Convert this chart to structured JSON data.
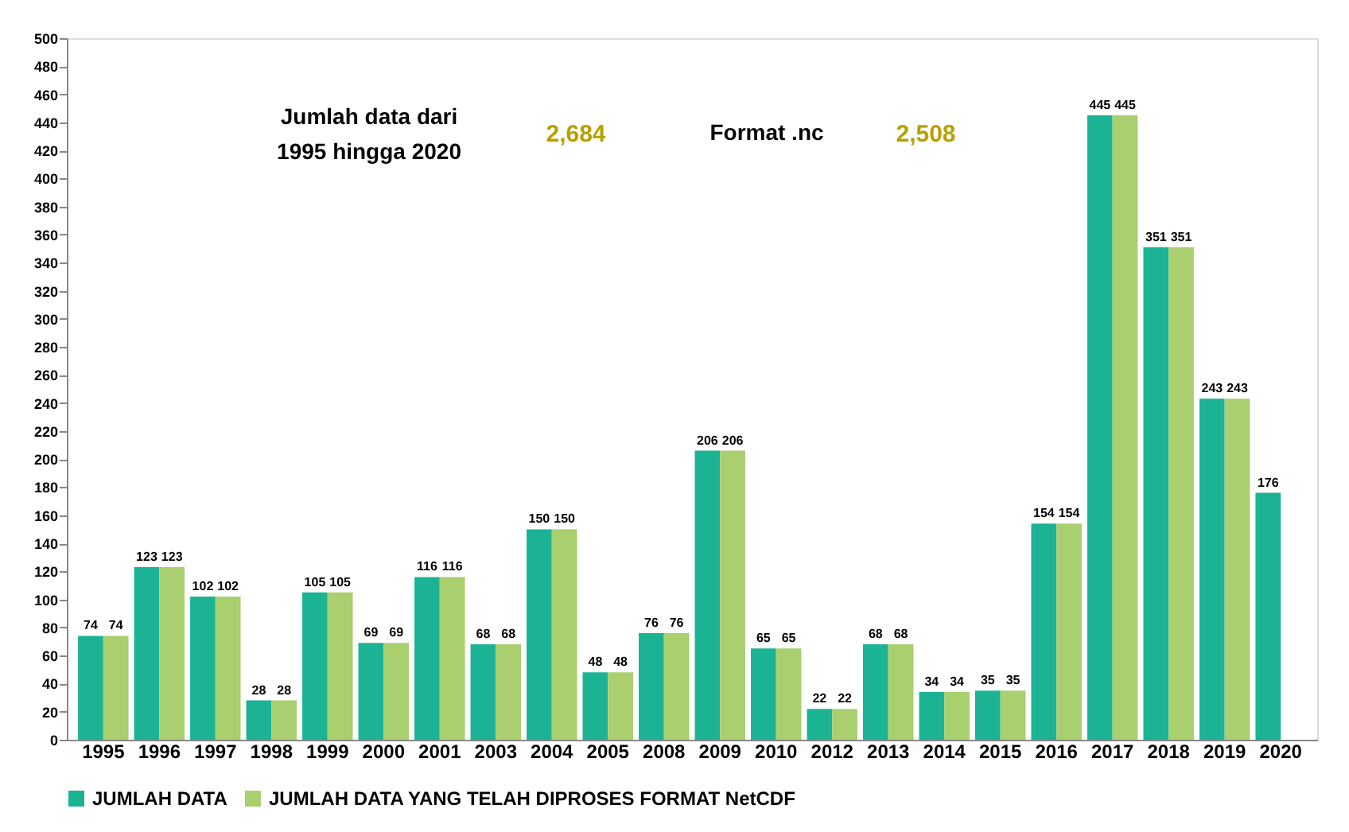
{
  "chart_data": {
    "type": "bar",
    "categories": [
      "1995",
      "1996",
      "1997",
      "1998",
      "1999",
      "2000",
      "2001",
      "2003",
      "2004",
      "2005",
      "2008",
      "2009",
      "2010",
      "2012",
      "2013",
      "2014",
      "2015",
      "2016",
      "2017",
      "2018",
      "2019",
      "2020"
    ],
    "series": [
      {
        "name": "JUMLAH DATA",
        "color": "#1bb394",
        "values": [
          74,
          123,
          102,
          28,
          105,
          69,
          116,
          68,
          150,
          48,
          76,
          206,
          65,
          22,
          68,
          34,
          35,
          154,
          445,
          351,
          243,
          176
        ]
      },
      {
        "name": "JUMLAH DATA YANG TELAH DIPROSES FORMAT NetCDF",
        "color": "#a9cf6f",
        "values": [
          74,
          123,
          102,
          28,
          105,
          69,
          116,
          68,
          150,
          48,
          76,
          206,
          65,
          22,
          68,
          34,
          35,
          154,
          445,
          351,
          243,
          null
        ]
      }
    ],
    "ylim": [
      0,
      500
    ],
    "yticks": [
      0,
      20,
      40,
      60,
      80,
      100,
      120,
      140,
      160,
      180,
      200,
      220,
      240,
      260,
      280,
      300,
      320,
      340,
      360,
      380,
      400,
      420,
      440,
      460,
      480,
      500
    ],
    "data_labels": true,
    "grid": false,
    "legend": "bottom",
    "annotations": [
      "Jumlah data dari\n1995 hingga 2020",
      "2,684",
      "Format .nc",
      "2,508"
    ]
  }
}
